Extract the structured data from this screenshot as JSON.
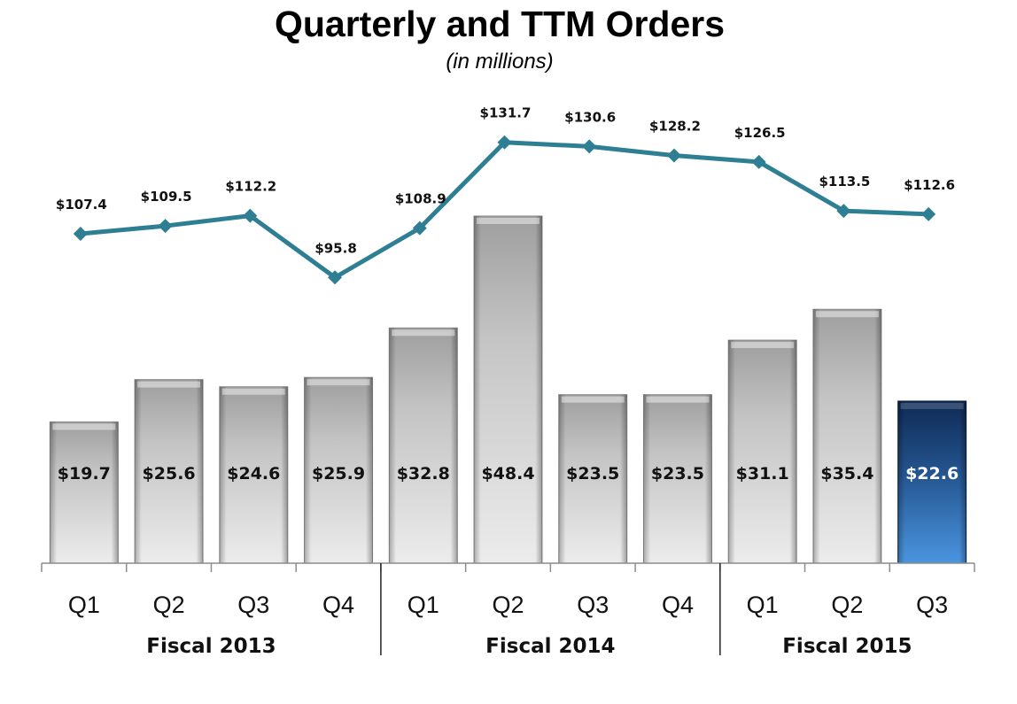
{
  "chart_data": {
    "type": "bar",
    "title": "Quarterly and TTM Orders",
    "subtitle": "(in millions)",
    "categories": [
      "Q1",
      "Q2",
      "Q3",
      "Q4",
      "Q1",
      "Q2",
      "Q3",
      "Q4",
      "Q1",
      "Q2",
      "Q3"
    ],
    "groups": [
      {
        "label": "Fiscal 2013",
        "count": 4
      },
      {
        "label": "Fiscal 2014",
        "count": 4
      },
      {
        "label": "Fiscal 2015",
        "count": 3
      }
    ],
    "series": [
      {
        "type": "bar",
        "values": [
          19.7,
          25.6,
          24.6,
          25.9,
          32.8,
          48.4,
          23.5,
          23.5,
          31.1,
          35.4,
          22.6
        ],
        "labels": [
          "$19.7",
          "$25.6",
          "$24.6",
          "$25.9",
          "$32.8",
          "$48.4",
          "$23.5",
          "$23.5",
          "$31.1",
          "$35.4",
          "$22.6"
        ],
        "highlight_index": 10
      },
      {
        "type": "line",
        "values": [
          107.4,
          109.5,
          112.2,
          95.8,
          108.9,
          131.7,
          130.6,
          128.2,
          126.5,
          113.5,
          112.6
        ],
        "labels": [
          "$107.4",
          "$109.5",
          "$112.2",
          "$95.8",
          "$108.9",
          "$131.7",
          "$130.6",
          "$128.2",
          "$126.5",
          "$113.5",
          "$112.6"
        ]
      }
    ],
    "colors": {
      "bar": "#bdbdbd",
      "bar_highlight": "#2f6bb0",
      "line": "#2e7f93",
      "label_dark": "#111111",
      "label_light": "#ffffff"
    },
    "grid": false
  }
}
